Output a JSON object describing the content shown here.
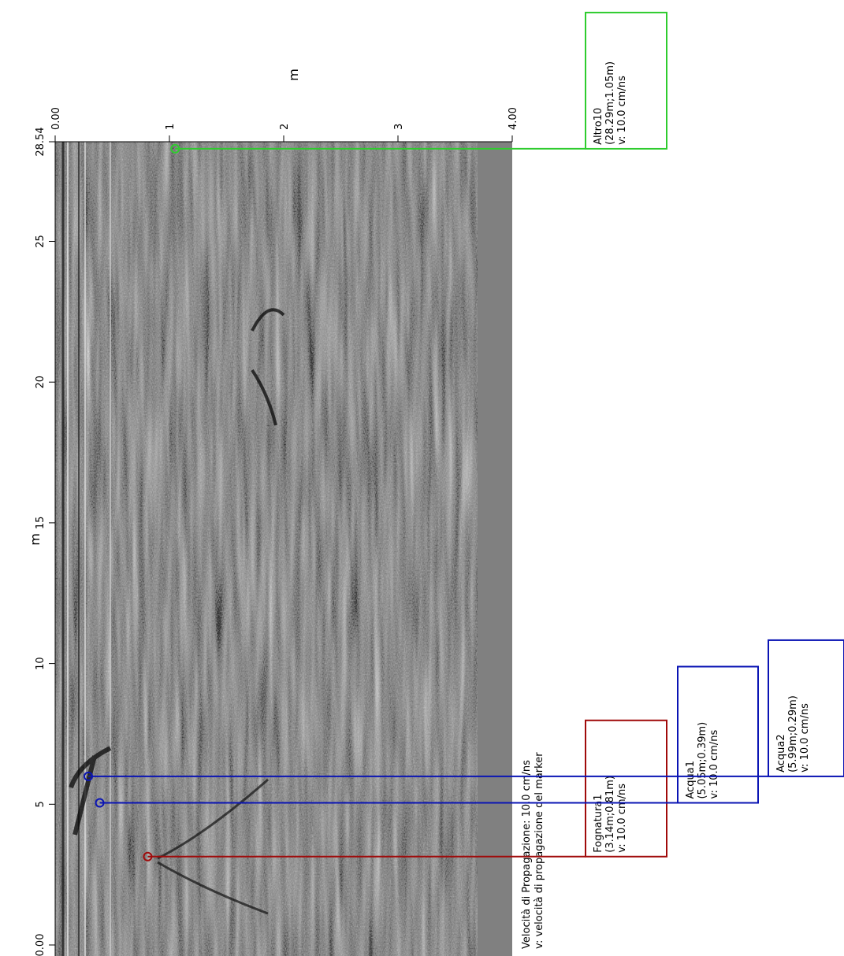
{
  "chart_data": {
    "type": "radargram",
    "x_label": "m",
    "y_label": "m",
    "xlim": [
      0,
      4
    ],
    "xticks": [
      {
        "value": 0,
        "label": "0.00"
      },
      1,
      2,
      3,
      {
        "value": 4,
        "label": "4.00"
      }
    ],
    "ylim": [
      0,
      28.54
    ],
    "yticks": [
      {
        "value": 0,
        "label": "0.00"
      },
      5,
      10,
      15,
      20,
      25,
      28.54
    ],
    "legend": [
      "Velocità di Propagazione:  10.0 cm/ns",
      "v: velocità di propagazione del marker"
    ],
    "markers": [
      {
        "name": "Altro10",
        "color": "#2ecc2e",
        "distance": 28.29,
        "depth": 1.05,
        "coord_label": "(28.29m;1.05m)",
        "velocity_label": "v: 10.0 cm/ns"
      },
      {
        "name": "Fognatura1",
        "color": "#a00a0a",
        "distance": 3.14,
        "depth": 0.81,
        "coord_label": "(3.14m;0.81m)",
        "velocity_label": "v: 10.0 cm/ns"
      },
      {
        "name": "Acqua1",
        "color": "#0a14b4",
        "distance": 5.05,
        "depth": 0.39,
        "coord_label": "(5.05m;0.39m)",
        "velocity_label": "v: 10.0 cm/ns"
      },
      {
        "name": "Acqua2",
        "color": "#0a14b4",
        "distance": 5.99,
        "depth": 0.29,
        "coord_label": "(5.99m;0.29m)",
        "velocity_label": "v: 10.0 cm/ns"
      }
    ]
  }
}
